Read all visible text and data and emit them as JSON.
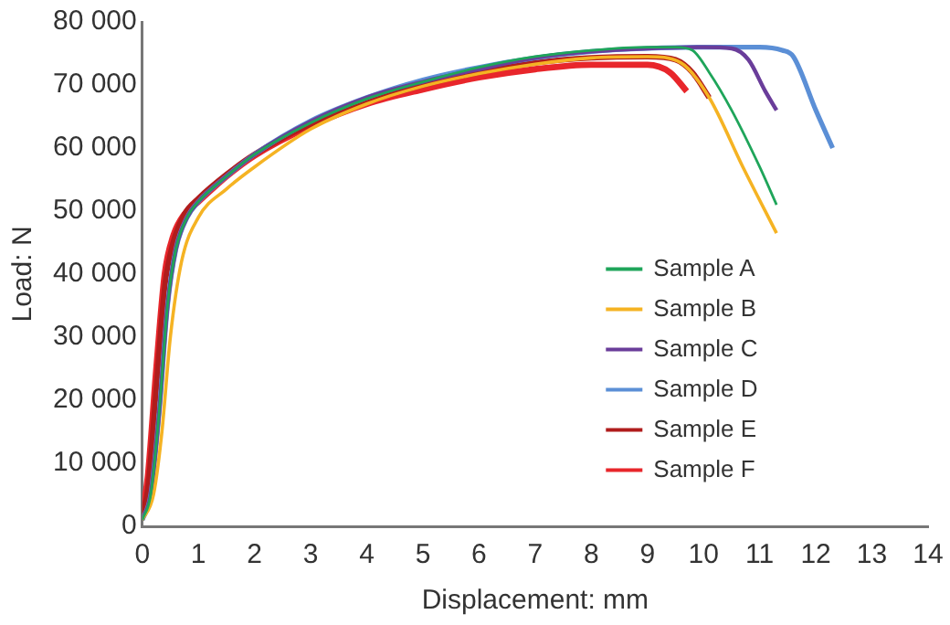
{
  "chart_data": {
    "type": "line",
    "xlabel": "Displacement: mm",
    "ylabel": "Load: N",
    "xlim": [
      0,
      14
    ],
    "xticks": [
      0,
      1,
      2,
      3,
      4,
      5,
      6,
      7,
      8,
      9,
      10,
      11,
      12,
      13,
      14
    ],
    "ylim": [
      0,
      80000
    ],
    "yticks": [
      0,
      {
        "value": 10000,
        "label": "10 000"
      },
      {
        "value": 20000,
        "label": "20 000"
      },
      {
        "value": 30000,
        "label": "30 000"
      },
      {
        "value": 40000,
        "label": "40 000"
      },
      {
        "value": 50000,
        "label": "50 000"
      },
      {
        "value": 60000,
        "label": "60 000"
      },
      {
        "value": 70000,
        "label": "70 000"
      },
      {
        "value": 80000,
        "label": "80 000"
      }
    ],
    "grid": false,
    "legend": "right",
    "marker": "none",
    "line_style": "solid",
    "series": [
      {
        "name": "Sample A",
        "color": "#1fa55a",
        "x": [
          0,
          0.15,
          0.3,
          0.45,
          0.6,
          0.8,
          1,
          1.5,
          2,
          3,
          4,
          5,
          6,
          7,
          8,
          9,
          9.5,
          9.8,
          10.1,
          10.5,
          11,
          11.3
        ],
        "values": [
          1000,
          5000,
          18000,
          35000,
          44000,
          49000,
          51500,
          55500,
          59000,
          64000,
          67800,
          70500,
          72800,
          74500,
          75500,
          76000,
          76000,
          75500,
          72000,
          66000,
          57000,
          51000
        ]
      },
      {
        "name": "Sample B",
        "color": "#f5b323",
        "x": [
          0,
          0.2,
          0.35,
          0.5,
          0.7,
          1,
          1.5,
          2,
          3,
          4,
          5,
          6,
          7,
          8,
          9,
          9.6,
          10.1,
          10.7,
          11.3
        ],
        "values": [
          1000,
          5000,
          15000,
          30000,
          42000,
          49000,
          53500,
          57000,
          63000,
          67000,
          69800,
          71800,
          73300,
          74300,
          74500,
          73500,
          68000,
          57000,
          46500
        ]
      },
      {
        "name": "Sample C",
        "color": "#6a3d9a",
        "x": [
          0,
          0.15,
          0.3,
          0.45,
          0.6,
          0.8,
          1,
          1.5,
          2,
          3,
          4,
          5,
          6,
          7,
          8,
          9,
          10,
          10.5,
          10.8,
          11.1,
          11.3
        ],
        "values": [
          1000,
          5000,
          18000,
          35000,
          44000,
          49000,
          51500,
          55500,
          59000,
          64200,
          68000,
          70500,
          72500,
          74300,
          75300,
          75800,
          76000,
          75800,
          74000,
          69000,
          66000
        ]
      },
      {
        "name": "Sample D",
        "color": "#5b8fd6",
        "x": [
          0,
          0.15,
          0.3,
          0.45,
          0.6,
          0.8,
          1,
          1.5,
          2,
          3,
          4,
          5,
          6,
          7,
          8,
          9,
          10,
          11,
          11.4,
          11.6,
          12,
          12.3
        ],
        "values": [
          1000,
          5000,
          18000,
          35000,
          44000,
          49000,
          51500,
          55500,
          59000,
          64300,
          68000,
          70800,
          72800,
          74300,
          75300,
          75800,
          76000,
          76000,
          75500,
          74500,
          66000,
          60000
        ]
      },
      {
        "name": "Sample E",
        "color": "#b01c1c",
        "x": [
          0,
          0.1,
          0.25,
          0.4,
          0.55,
          0.75,
          1,
          1.5,
          2,
          3,
          4,
          5,
          6,
          7,
          8,
          9,
          9.5,
          9.8,
          10.1
        ],
        "values": [
          2000,
          6000,
          22000,
          38000,
          45000,
          49500,
          52000,
          55800,
          59000,
          63800,
          67300,
          70000,
          72000,
          73500,
          74300,
          74500,
          74000,
          72000,
          68000
        ]
      },
      {
        "name": "Sample F",
        "color": "#e8262b",
        "x": [
          0,
          0.1,
          0.25,
          0.4,
          0.55,
          0.75,
          1,
          1.5,
          2,
          3,
          4,
          5,
          6,
          7,
          8,
          9,
          9.4,
          9.7
        ],
        "values": [
          2000,
          8000,
          25000,
          40000,
          46000,
          49500,
          51500,
          55500,
          58800,
          63500,
          67000,
          69300,
          71200,
          72500,
          73200,
          73200,
          72000,
          69000
        ]
      }
    ]
  }
}
